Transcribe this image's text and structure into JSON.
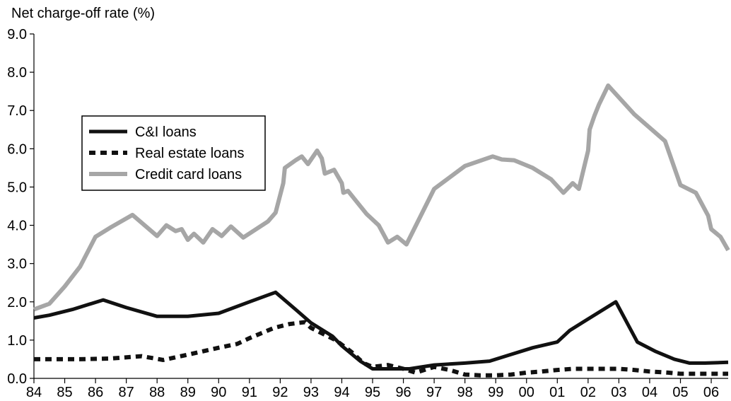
{
  "chart_data": {
    "type": "line",
    "ylabel": "Net charge-off rate (%)",
    "ylim": [
      0,
      9
    ],
    "y_ticks": [
      "0.0",
      "1.0",
      "2.0",
      "3.0",
      "4.0",
      "5.0",
      "6.0",
      "7.0",
      "8.0",
      "9.0"
    ],
    "x_range": [
      1984,
      2006.55
    ],
    "x_ticks": [
      {
        "x": 1984,
        "label": "84"
      },
      {
        "x": 1985,
        "label": "85"
      },
      {
        "x": 1986,
        "label": "86"
      },
      {
        "x": 1987,
        "label": "87"
      },
      {
        "x": 1988,
        "label": "88"
      },
      {
        "x": 1989,
        "label": "89"
      },
      {
        "x": 1990,
        "label": "90"
      },
      {
        "x": 1991,
        "label": "91"
      },
      {
        "x": 1992,
        "label": "92"
      },
      {
        "x": 1993,
        "label": "93"
      },
      {
        "x": 1994,
        "label": "94"
      },
      {
        "x": 1995,
        "label": "95"
      },
      {
        "x": 1996,
        "label": "96"
      },
      {
        "x": 1997,
        "label": "97"
      },
      {
        "x": 1998,
        "label": "98"
      },
      {
        "x": 1999,
        "label": "99"
      },
      {
        "x": 2000,
        "label": "00"
      },
      {
        "x": 2001,
        "label": "01"
      },
      {
        "x": 2002,
        "label": "02"
      },
      {
        "x": 2003,
        "label": "03"
      },
      {
        "x": 2004,
        "label": "04"
      },
      {
        "x": 2005,
        "label": "05"
      },
      {
        "x": 2006,
        "label": "06"
      }
    ],
    "grid": false,
    "legend_position": "upper-left",
    "series": [
      {
        "name": "C&I loans",
        "color": "#111111",
        "style": "solid",
        "points": [
          [
            1984.0,
            1.58
          ],
          [
            1984.5,
            1.65
          ],
          [
            1985.25,
            1.8
          ],
          [
            1986.25,
            2.05
          ],
          [
            1987.0,
            1.85
          ],
          [
            1988.0,
            1.62
          ],
          [
            1989.0,
            1.62
          ],
          [
            1990.0,
            1.7
          ],
          [
            1991.0,
            2.0
          ],
          [
            1991.85,
            2.25
          ],
          [
            1992.5,
            1.8
          ],
          [
            1993.0,
            1.45
          ],
          [
            1993.7,
            1.1
          ],
          [
            1994.0,
            0.85
          ],
          [
            1994.6,
            0.45
          ],
          [
            1995.0,
            0.25
          ],
          [
            1996.2,
            0.25
          ],
          [
            1997.0,
            0.35
          ],
          [
            1998.0,
            0.4
          ],
          [
            1998.8,
            0.45
          ],
          [
            1999.4,
            0.6
          ],
          [
            2000.2,
            0.8
          ],
          [
            2001.0,
            0.95
          ],
          [
            2001.4,
            1.25
          ],
          [
            2001.9,
            1.5
          ],
          [
            2002.4,
            1.75
          ],
          [
            2002.9,
            2.0
          ],
          [
            2003.2,
            1.55
          ],
          [
            2003.6,
            0.95
          ],
          [
            2004.2,
            0.7
          ],
          [
            2004.8,
            0.5
          ],
          [
            2005.3,
            0.4
          ],
          [
            2005.8,
            0.4
          ],
          [
            2006.55,
            0.42
          ]
        ]
      },
      {
        "name": "Real estate loans",
        "color": "#111111",
        "style": "dotted",
        "points": [
          [
            1984.0,
            0.5
          ],
          [
            1985.5,
            0.5
          ],
          [
            1986.5,
            0.52
          ],
          [
            1987.5,
            0.58
          ],
          [
            1988.2,
            0.48
          ],
          [
            1989.0,
            0.62
          ],
          [
            1990.0,
            0.8
          ],
          [
            1990.6,
            0.9
          ],
          [
            1991.0,
            1.05
          ],
          [
            1991.8,
            1.32
          ],
          [
            1992.3,
            1.42
          ],
          [
            1992.8,
            1.47
          ],
          [
            1993.0,
            1.32
          ],
          [
            1993.8,
            1.0
          ],
          [
            1994.3,
            0.7
          ],
          [
            1994.7,
            0.4
          ],
          [
            1995.0,
            0.3
          ],
          [
            1995.5,
            0.35
          ],
          [
            1996.0,
            0.25
          ],
          [
            1996.4,
            0.15
          ],
          [
            1997.0,
            0.3
          ],
          [
            1997.5,
            0.22
          ],
          [
            1998.0,
            0.1
          ],
          [
            1998.5,
            0.08
          ],
          [
            1999.0,
            0.08
          ],
          [
            1999.5,
            0.1
          ],
          [
            2000.0,
            0.15
          ],
          [
            2000.5,
            0.18
          ],
          [
            2001.0,
            0.22
          ],
          [
            2001.5,
            0.25
          ],
          [
            2002.0,
            0.25
          ],
          [
            2003.0,
            0.25
          ],
          [
            2003.5,
            0.22
          ],
          [
            2004.0,
            0.18
          ],
          [
            2004.6,
            0.15
          ],
          [
            2005.0,
            0.12
          ],
          [
            2005.6,
            0.12
          ],
          [
            2006.55,
            0.12
          ]
        ]
      },
      {
        "name": "Credit card loans",
        "color": "#a6a6a6",
        "style": "solid",
        "points": [
          [
            1984.0,
            1.8
          ],
          [
            1984.5,
            1.95
          ],
          [
            1985.0,
            2.4
          ],
          [
            1985.5,
            2.92
          ],
          [
            1986.0,
            3.7
          ],
          [
            1986.5,
            3.95
          ],
          [
            1987.2,
            4.27
          ],
          [
            1988.0,
            3.72
          ],
          [
            1988.3,
            4.0
          ],
          [
            1988.6,
            3.85
          ],
          [
            1988.8,
            3.9
          ],
          [
            1989.0,
            3.62
          ],
          [
            1989.2,
            3.78
          ],
          [
            1989.5,
            3.55
          ],
          [
            1989.8,
            3.9
          ],
          [
            1990.1,
            3.72
          ],
          [
            1990.4,
            3.97
          ],
          [
            1990.8,
            3.68
          ],
          [
            1991.6,
            4.1
          ],
          [
            1991.85,
            4.33
          ],
          [
            1992.1,
            5.1
          ],
          [
            1992.15,
            5.5
          ],
          [
            1992.5,
            5.7
          ],
          [
            1992.7,
            5.8
          ],
          [
            1992.9,
            5.6
          ],
          [
            1993.2,
            5.95
          ],
          [
            1993.35,
            5.75
          ],
          [
            1993.45,
            5.35
          ],
          [
            1993.75,
            5.45
          ],
          [
            1994.0,
            5.1
          ],
          [
            1994.05,
            4.85
          ],
          [
            1994.2,
            4.9
          ],
          [
            1994.8,
            4.3
          ],
          [
            1995.2,
            4.0
          ],
          [
            1995.5,
            3.55
          ],
          [
            1995.8,
            3.7
          ],
          [
            1996.1,
            3.5
          ],
          [
            1997.0,
            4.95
          ],
          [
            1998.0,
            5.55
          ],
          [
            1998.9,
            5.8
          ],
          [
            1999.2,
            5.72
          ],
          [
            1999.6,
            5.7
          ],
          [
            2000.2,
            5.5
          ],
          [
            2000.8,
            5.2
          ],
          [
            2001.2,
            4.85
          ],
          [
            2001.5,
            5.1
          ],
          [
            2001.7,
            4.95
          ],
          [
            2002.0,
            5.95
          ],
          [
            2002.05,
            6.5
          ],
          [
            2002.2,
            6.85
          ],
          [
            2002.35,
            7.15
          ],
          [
            2002.65,
            7.65
          ],
          [
            2003.5,
            6.9
          ],
          [
            2004.0,
            6.55
          ],
          [
            2004.5,
            6.2
          ],
          [
            2005.0,
            5.05
          ],
          [
            2005.5,
            4.85
          ],
          [
            2005.9,
            4.25
          ],
          [
            2006.0,
            3.9
          ],
          [
            2006.3,
            3.7
          ],
          [
            2006.55,
            3.35
          ]
        ]
      }
    ]
  }
}
